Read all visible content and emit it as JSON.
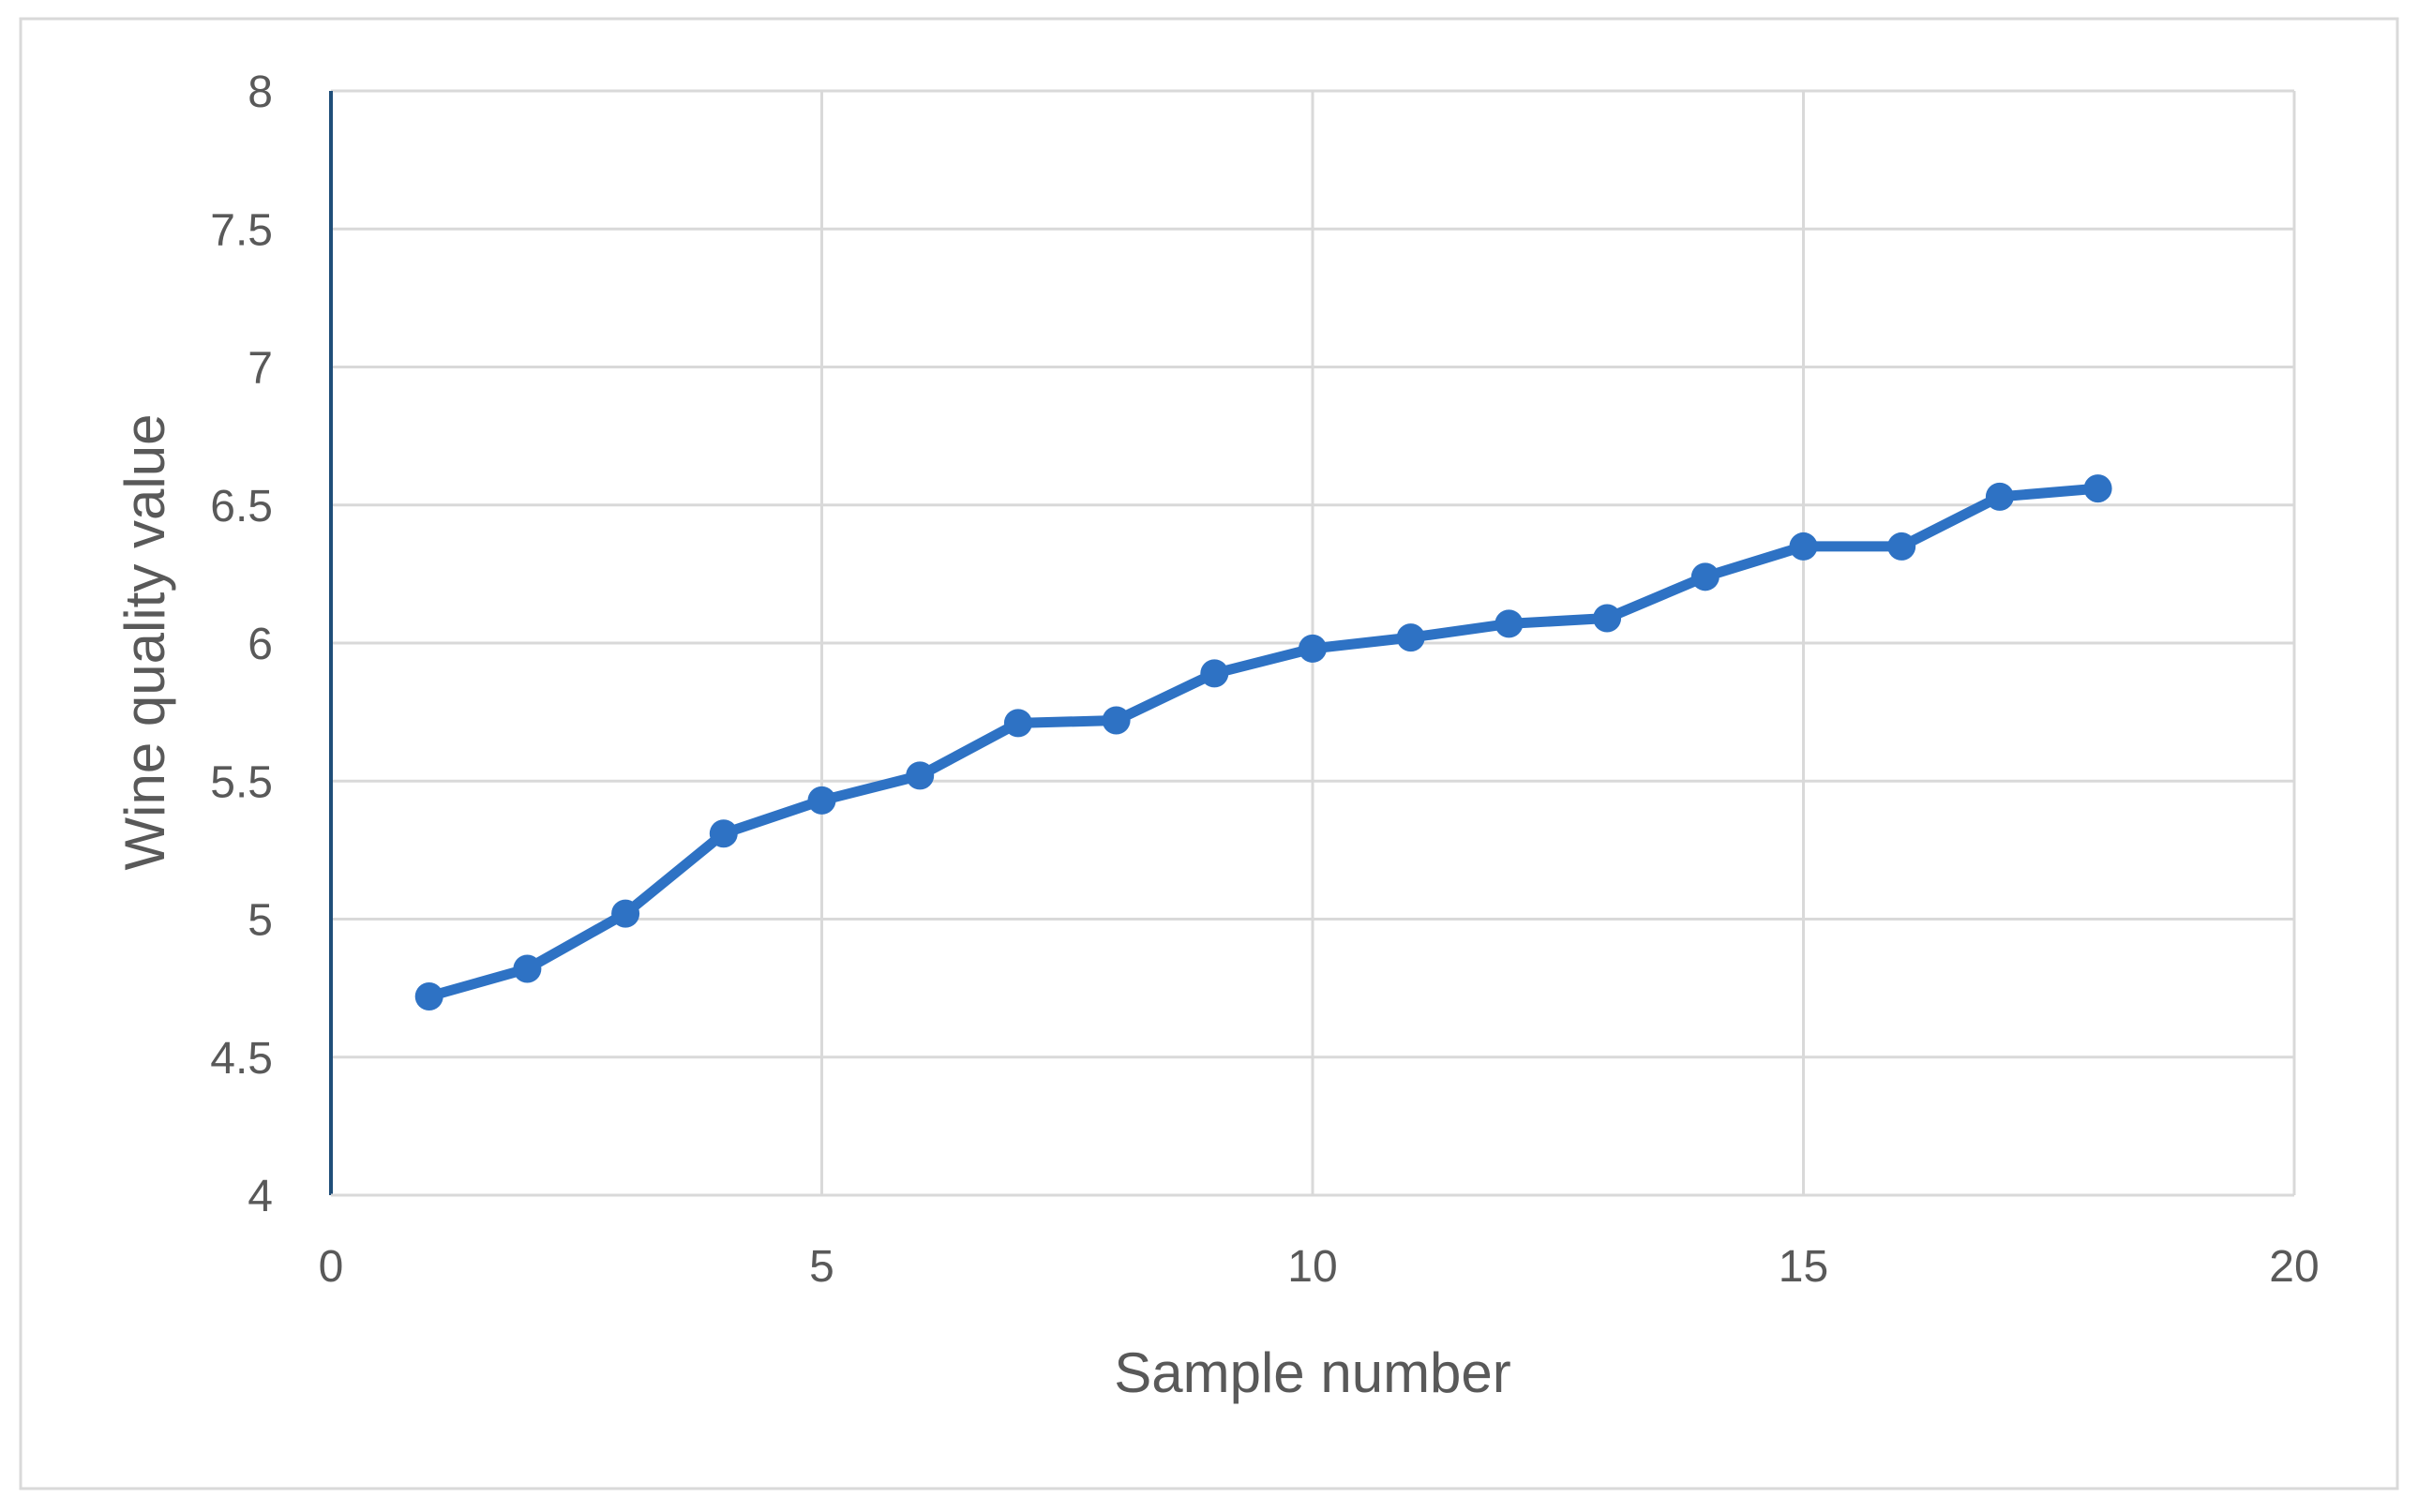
{
  "chart_data": {
    "type": "scatter",
    "title": "",
    "xlabel": "Sample number",
    "ylabel": "Wine quality value",
    "xlim": [
      0,
      20
    ],
    "ylim": [
      4,
      8
    ],
    "x_ticks": [
      0,
      5,
      10,
      15,
      20
    ],
    "y_ticks": [
      4,
      4.5,
      5,
      5.5,
      6,
      6.5,
      7,
      7.5,
      8
    ],
    "x_tick_labels": [
      "0",
      "5",
      "10",
      "15",
      "20"
    ],
    "y_tick_labels": [
      "4",
      "4.5",
      "5",
      "5.5",
      "6",
      "6.5",
      "7",
      "7.5",
      "8"
    ],
    "grid": true,
    "legend": "none",
    "line_color": "#2e72c4",
    "series": [
      {
        "x": [
          1,
          2,
          3,
          4,
          5,
          6,
          7,
          8,
          9,
          10,
          11,
          12,
          13,
          14,
          15,
          16,
          17,
          18
        ],
        "y": [
          4.72,
          4.82,
          5.02,
          5.31,
          5.43,
          5.52,
          5.71,
          5.72,
          5.89,
          5.98,
          6.02,
          6.07,
          6.09,
          6.24,
          6.35,
          6.35,
          6.53,
          6.56
        ]
      }
    ]
  }
}
